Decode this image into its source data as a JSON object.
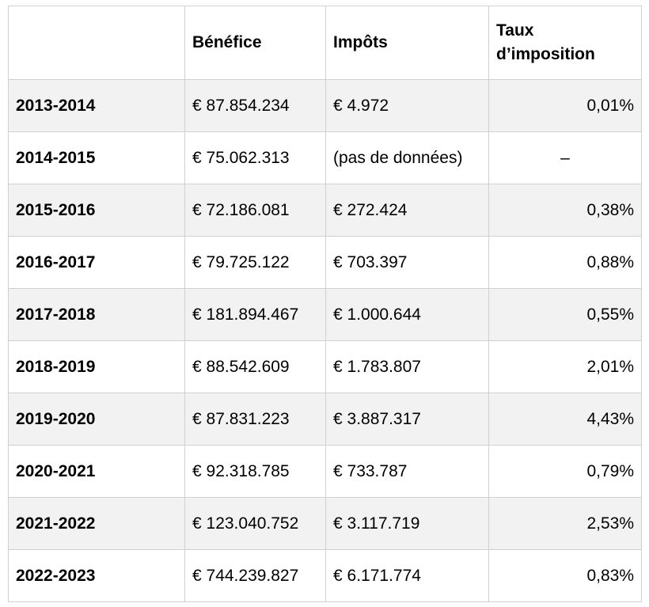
{
  "chart_data": {
    "type": "table",
    "title": "",
    "columns": [
      "",
      "Bénéfice",
      "Impôts",
      "Taux d’imposition"
    ],
    "rows": [
      [
        "2013-2014",
        "€ 87.854.234",
        "€ 4.972",
        "0,01%"
      ],
      [
        "2014-2015",
        "€ 75.062.313",
        "(pas de données)",
        "–"
      ],
      [
        "2015-2016",
        "€ 72.186.081",
        "€ 272.424",
        "0,38%"
      ],
      [
        "2016-2017",
        "€ 79.725.122",
        "€ 703.397",
        "0,88%"
      ],
      [
        "2017-2018",
        "€ 181.894.467",
        "€ 1.000.644",
        "0,55%"
      ],
      [
        "2018-2019",
        "€ 88.542.609",
        "€ 1.783.807",
        "2,01%"
      ],
      [
        "2019-2020",
        "€ 87.831.223",
        "€ 3.887.317",
        "4,43%"
      ],
      [
        "2020-2021",
        "€ 92.318.785",
        "€ 733.787",
        "0,79%"
      ],
      [
        "2021-2022",
        "€ 123.040.752",
        "€ 3.117.719",
        "2,53%"
      ],
      [
        "2022-2023",
        "€ 744.239.827",
        "€ 6.171.774",
        "0,83%"
      ]
    ],
    "no_data_marker": "–",
    "layout_hints": {
      "striped_row_years": [
        "2013-2014",
        "2015-2016",
        "2017-2018",
        "2019-2020",
        "2021-2022"
      ],
      "taux_column_alignment": "right",
      "year_column_style": "bold"
    },
    "colors": {
      "stripe_background": "#f2f2f2",
      "row_background": "#ffffff",
      "border": "#d0d0d0",
      "text": "#000000"
    }
  }
}
